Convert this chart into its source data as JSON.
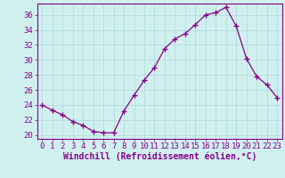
{
  "x": [
    0,
    1,
    2,
    3,
    4,
    5,
    6,
    7,
    8,
    9,
    10,
    11,
    12,
    13,
    14,
    15,
    16,
    17,
    18,
    19,
    20,
    21,
    22,
    23
  ],
  "y": [
    24.0,
    23.3,
    22.7,
    21.8,
    21.3,
    20.5,
    20.3,
    20.3,
    23.2,
    25.3,
    27.3,
    29.0,
    31.5,
    32.8,
    33.5,
    34.7,
    36.0,
    36.3,
    37.0,
    34.5,
    30.2,
    27.8,
    26.7,
    25.0
  ],
  "line_color": "#880088",
  "marker": "+",
  "marker_color": "#880088",
  "bg_color": "#d0f0f0",
  "grid_color": "#b0d8d8",
  "xlabel": "Windchill (Refroidissement éolien,°C)",
  "ylabel": "",
  "xlim": [
    -0.5,
    23.5
  ],
  "ylim": [
    19.5,
    37.5
  ],
  "yticks": [
    20,
    22,
    24,
    26,
    28,
    30,
    32,
    34,
    36
  ],
  "xticks": [
    0,
    1,
    2,
    3,
    4,
    5,
    6,
    7,
    8,
    9,
    10,
    11,
    12,
    13,
    14,
    15,
    16,
    17,
    18,
    19,
    20,
    21,
    22,
    23
  ],
  "tick_color": "#880088",
  "label_color": "#880088",
  "font_size": 6.5,
  "xlabel_fontsize": 7,
  "marker_size": 5,
  "linewidth": 0.9
}
